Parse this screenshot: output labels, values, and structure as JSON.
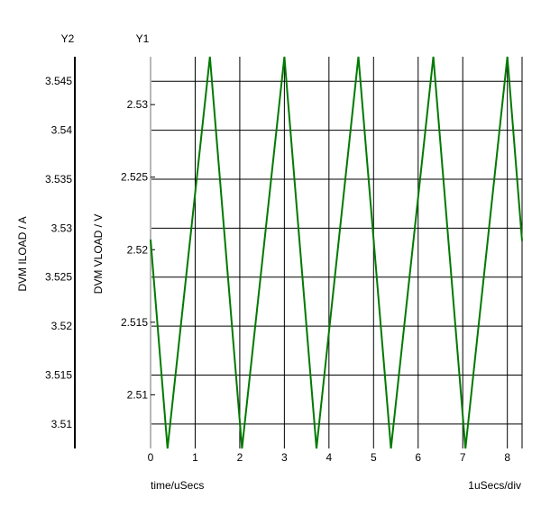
{
  "chart_data": {
    "type": "line",
    "axes": {
      "y2": {
        "name": "Y2",
        "label": "DVM ILOAD / A",
        "ticks": [
          3.545,
          3.54,
          3.535,
          3.53,
          3.525,
          3.52,
          3.515,
          3.51
        ],
        "tick_labels": [
          "3.545",
          "3.54",
          "3.535",
          "3.53",
          "3.525",
          "3.52",
          "3.515",
          "3.51"
        ],
        "range": [
          3.5075,
          3.5475
        ]
      },
      "y1": {
        "name": "Y1",
        "label": "DVM VLOAD / V",
        "ticks": [
          2.53,
          2.525,
          2.52,
          2.515,
          2.51
        ],
        "tick_labels": [
          "2.53",
          "2.525",
          "2.52",
          "2.515",
          "2.51"
        ],
        "range": [
          2.5063,
          2.5333
        ]
      },
      "x": {
        "label": "time/uSecs",
        "division_label": "1uSecs/div",
        "ticks": [
          0,
          1,
          2,
          3,
          4,
          5,
          6,
          7,
          8
        ],
        "tick_labels": [
          "0",
          "1",
          "2",
          "3",
          "4",
          "5",
          "6",
          "7",
          "8"
        ],
        "range": [
          0,
          8.33
        ]
      }
    },
    "grid": true,
    "series": [
      {
        "axis": "y1",
        "color": "#007a00",
        "x": [
          0,
          0.38,
          1.33,
          2.05,
          3.0,
          3.72,
          4.66,
          5.39,
          6.34,
          7.06,
          8.0,
          8.33
        ],
        "y": [
          2.5207,
          2.5063,
          2.5333,
          2.5063,
          2.5333,
          2.5063,
          2.5333,
          2.5063,
          2.5333,
          2.5063,
          2.5333,
          2.5206
        ]
      }
    ]
  }
}
